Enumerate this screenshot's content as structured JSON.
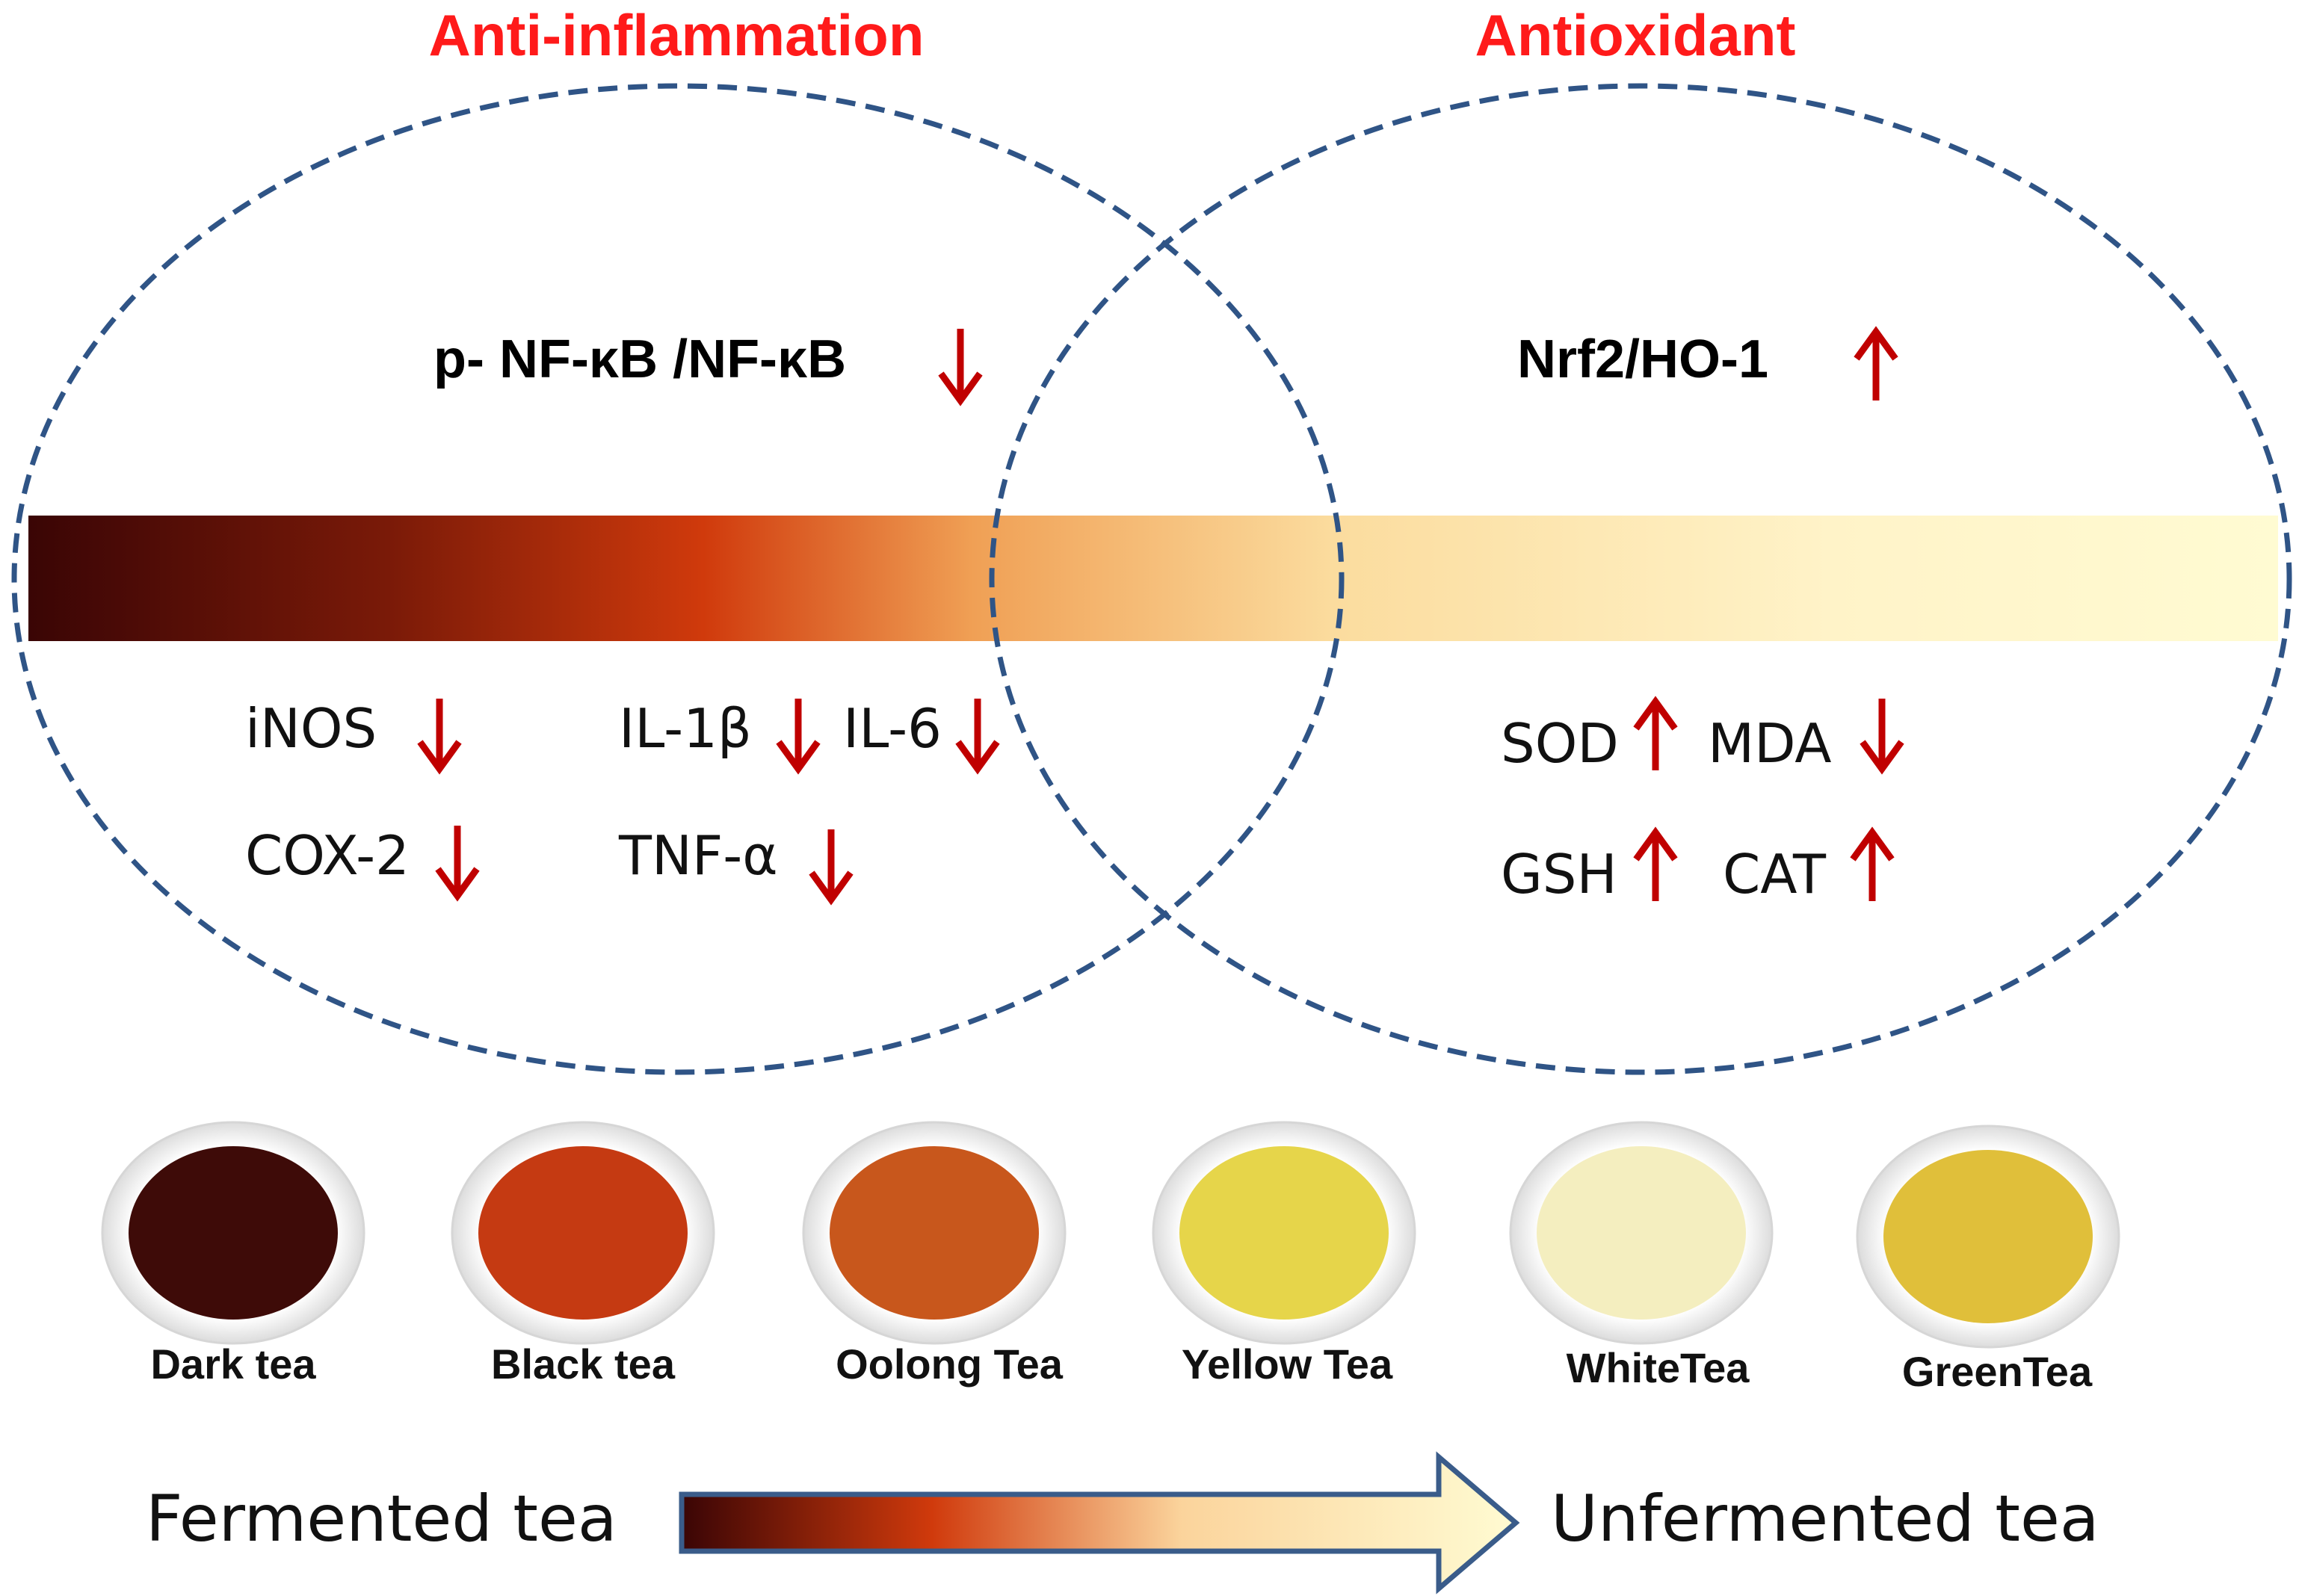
{
  "titles": {
    "left": "Anti-inflammation",
    "right": "Antioxidant"
  },
  "pathways": {
    "left": "p- NF-κB /NF-κB",
    "right": "Nrf2/HO-1"
  },
  "markers": {
    "inos": "iNOS",
    "il1b": "IL-1β",
    "il6": "IL-6",
    "cox2": "COX-2",
    "tnfa": "TNF-α",
    "sod": "SOD",
    "mda": "MDA",
    "gsh": "GSH",
    "cat": "CAT"
  },
  "teas": [
    {
      "label": "Dark tea",
      "color": "#3e0b08"
    },
    {
      "label": "Black tea",
      "color": "#c53a12"
    },
    {
      "label": "Oolong Tea",
      "color": "#c8571c"
    },
    {
      "label": "Yellow Tea",
      "color": "#e6d54a"
    },
    {
      "label": "WhiteTea",
      "color": "#f4eebf"
    },
    {
      "label": "GreenTea",
      "color": "#e0bf3a"
    }
  ],
  "scale": {
    "start": "Fermented tea",
    "end": "Unfermented tea"
  },
  "colors": {
    "title": "#ff1a1a",
    "arrow": "#c00000",
    "ellipse": "#2f5486",
    "gradient_dark": "#3a0505",
    "gradient_mid": "#d03a0c",
    "gradient_light": "#fffbd2"
  }
}
